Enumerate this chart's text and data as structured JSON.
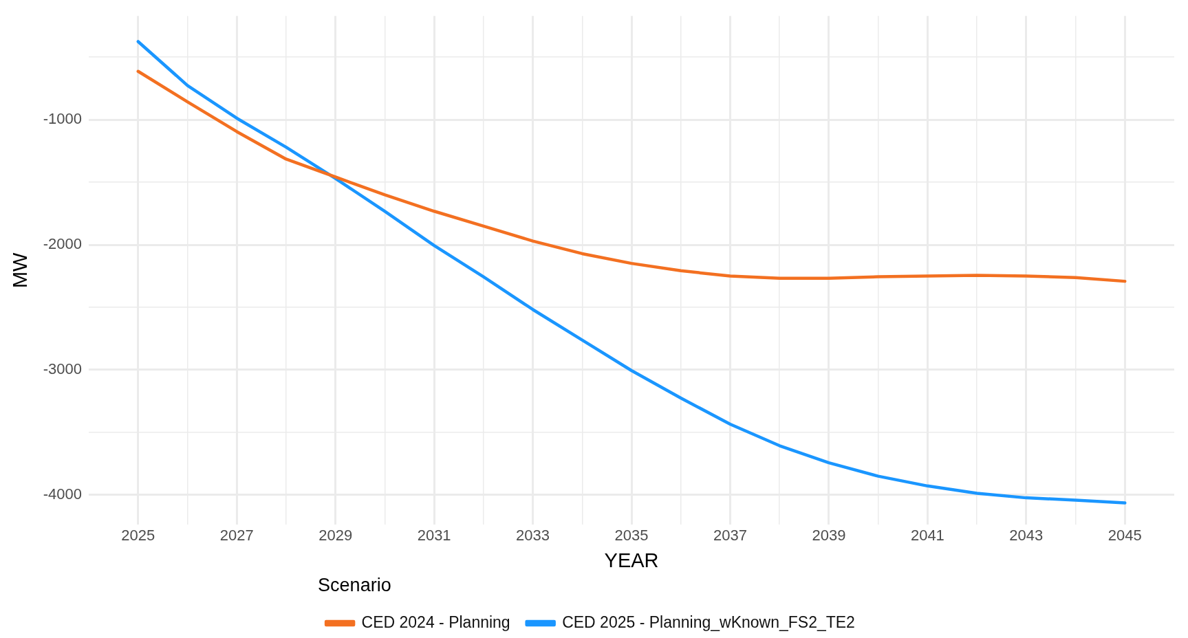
{
  "chart_data": {
    "type": "line",
    "xlabel": "YEAR",
    "ylabel": "MW",
    "legend_title": "Scenario",
    "legend": "bottom",
    "grid": true,
    "marker": "none",
    "line_style": "solid",
    "x": [
      2025,
      2026,
      2027,
      2028,
      2029,
      2030,
      2031,
      2032,
      2033,
      2034,
      2035,
      2036,
      2037,
      2038,
      2039,
      2040,
      2041,
      2042,
      2043,
      2044,
      2045
    ],
    "xlim": [
      2024,
      2046
    ],
    "xticks": [
      2025,
      {
        "value": 2026,
        "label": null
      },
      2027,
      {
        "value": 2028,
        "label": null
      },
      2029,
      {
        "value": 2030,
        "label": null
      },
      2031,
      {
        "value": 2032,
        "label": null
      },
      2033,
      {
        "value": 2034,
        "label": null
      },
      2035,
      {
        "value": 2036,
        "label": null
      },
      2037,
      {
        "value": 2038,
        "label": null
      },
      2039,
      {
        "value": 2040,
        "label": null
      },
      2041,
      {
        "value": 2042,
        "label": null
      },
      2043,
      {
        "value": 2044,
        "label": null
      },
      2045
    ],
    "ylim": [
      -4240,
      -170
    ],
    "yticks": [
      -4000,
      {
        "value": -3500,
        "label": null
      },
      -3000,
      {
        "value": -2500,
        "label": null
      },
      -2000,
      {
        "value": -1500,
        "label": null
      },
      -1000,
      {
        "value": -500,
        "label": null
      }
    ],
    "series": [
      {
        "name": "CED 2024 - Planning",
        "color": "#f37021",
        "values": [
          -613,
          -857,
          -1095,
          -1315,
          -1458,
          -1601,
          -1732,
          -1851,
          -1970,
          -2071,
          -2149,
          -2208,
          -2250,
          -2268,
          -2268,
          -2256,
          -2250,
          -2244,
          -2250,
          -2262,
          -2292
        ]
      },
      {
        "name": "CED 2025 - Planning_wKnown_FS2_TE2",
        "color": "#1a96ff",
        "values": [
          -375,
          -726,
          -988,
          -1220,
          -1470,
          -1732,
          -2006,
          -2256,
          -2518,
          -2762,
          -3006,
          -3226,
          -3435,
          -3607,
          -3744,
          -3851,
          -3929,
          -3988,
          -4024,
          -4042,
          -4065
        ]
      }
    ]
  }
}
